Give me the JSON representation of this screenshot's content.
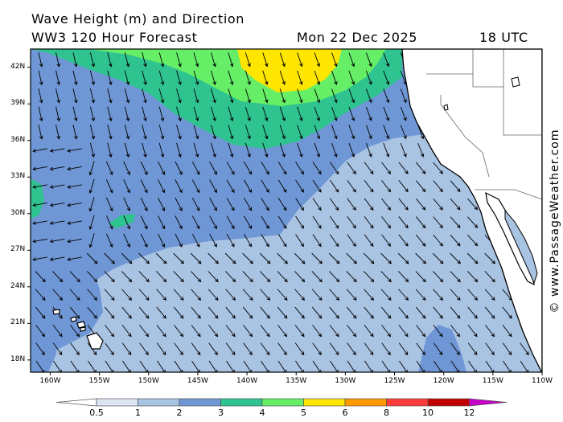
{
  "header": {
    "title": "Wave Height (m) and Direction",
    "model": "WW3 120 Hour Forecast",
    "date": "Mon 22 Dec 2025",
    "time": "18 UTC"
  },
  "credit": "© www.PassageWeather.com",
  "map": {
    "lat_labels": [
      "42N",
      "39N",
      "36N",
      "33N",
      "30N",
      "27N",
      "24N",
      "21N",
      "18N"
    ],
    "lon_labels": [
      "160W",
      "155W",
      "150W",
      "145W",
      "140W",
      "135W",
      "130W",
      "125W",
      "120W",
      "115W",
      "110W"
    ],
    "lat_range": [
      17,
      43.5
    ],
    "lon_range": [
      -162,
      -110
    ],
    "land_color": "#ffffff",
    "coast_color": "#000000"
  },
  "legend": {
    "tick_labels": [
      "0.5",
      "1",
      "2",
      "3",
      "4",
      "5",
      "6",
      "8",
      "10",
      "12"
    ],
    "colors": [
      "#dbe6f4",
      "#a9c3e3",
      "#6f97d5",
      "#2fc38f",
      "#66ee66",
      "#ffe600",
      "#ff9900",
      "#ff3a3a",
      "#c20000",
      "#c800c8"
    ],
    "unit": "m"
  },
  "colors": {
    "sea_1_2": "#6f97d5",
    "sea_05_1": "#a9c3e3",
    "sea_2_3": "#2fc38f",
    "sea_3_4": "#66ee66",
    "sea_4_5": "#ffe600"
  }
}
